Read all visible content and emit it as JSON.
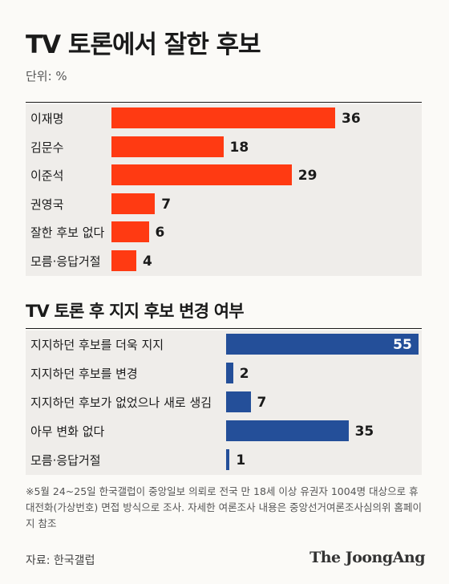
{
  "title": "TV 토론에서 잘한 후보",
  "unit": "단위: %",
  "section2_title": "TV 토론 후 지지 후보 변경 여부",
  "note": "※5월 24~25일 한국갤럽이 중앙일보 의뢰로 전국 만 18세 이상 유권자 1004명 대상으로 휴대전화(가상번호) 면접 방식으로 조사. 자세한 여론조사 내용은 중앙선거여론조사심의위 홈페이지 참조",
  "source": "자료: 한국갤럽",
  "logo": "The JoongAng",
  "colors": {
    "red": "#ff3a12",
    "blue": "#244f99",
    "row_bg": "#efedea"
  },
  "chart_data": [
    {
      "type": "bar",
      "title": "TV 토론에서 잘한 후보",
      "ylabel": "단위: %",
      "categories": [
        "이재명",
        "김문수",
        "이준석",
        "권영국",
        "잘한 후보 없다",
        "모름·응답거절"
      ],
      "values": [
        36,
        18,
        29,
        7,
        6,
        4
      ],
      "orientation": "horizontal",
      "color": "#ff3a12"
    },
    {
      "type": "bar",
      "title": "TV 토론 후 지지 후보 변경 여부",
      "categories": [
        "지지하던 후보를 더욱 지지",
        "지지하던 후보를 변경",
        "지지하던 후보가 없었으나 새로 생김",
        "아무 변화 없다",
        "모름·응답거절"
      ],
      "values": [
        55,
        2,
        7,
        35,
        1
      ],
      "orientation": "horizontal",
      "color": "#244f99"
    }
  ]
}
